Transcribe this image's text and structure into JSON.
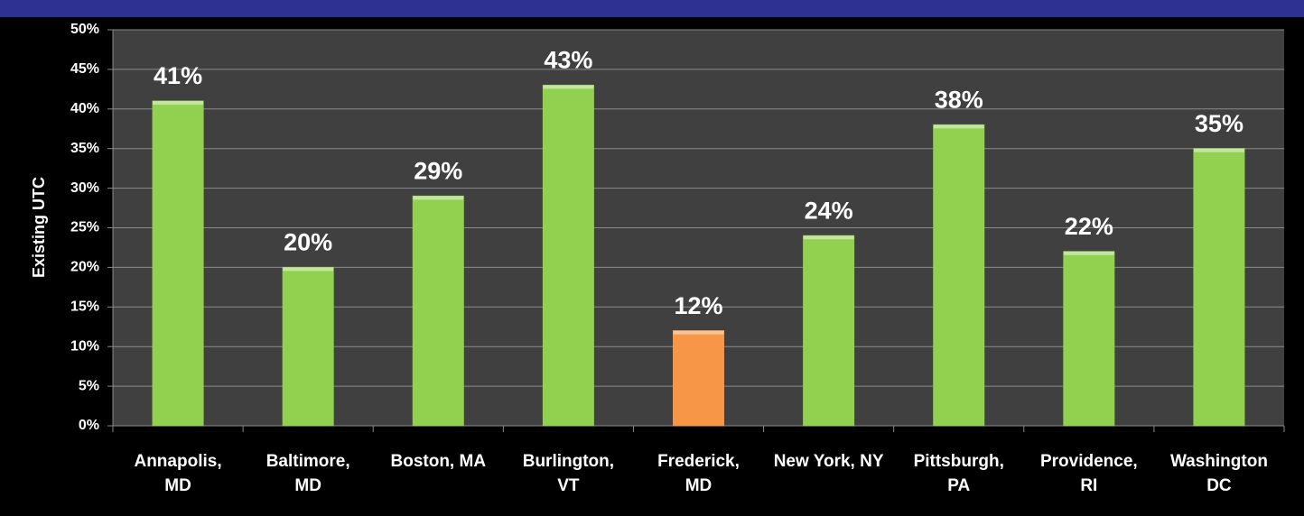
{
  "chart_data": {
    "type": "bar",
    "y_label": "Existing UTC",
    "categories": [
      [
        "Annapolis,",
        "MD"
      ],
      [
        "Baltimore,",
        "MD"
      ],
      [
        "Boston, MA"
      ],
      [
        "Burlington,",
        "VT"
      ],
      [
        "Frederick,",
        "MD"
      ],
      [
        "New York, NY"
      ],
      [
        "Pittsburgh,",
        "PA"
      ],
      [
        "Providence,",
        "RI"
      ],
      [
        "Washington",
        "DC"
      ]
    ],
    "values": [
      41,
      20,
      29,
      43,
      12,
      24,
      38,
      22,
      35
    ],
    "value_labels": [
      "41%",
      "20%",
      "29%",
      "43%",
      "12%",
      "24%",
      "38%",
      "22%",
      "35%"
    ],
    "colors": [
      "#92d050",
      "#92d050",
      "#92d050",
      "#92d050",
      "#f79646",
      "#92d050",
      "#92d050",
      "#92d050",
      "#92d050"
    ],
    "ylim": [
      0,
      50
    ],
    "yticks": [
      {
        "value": 0,
        "label": "0%"
      },
      {
        "value": 5,
        "label": "5%"
      },
      {
        "value": 10,
        "label": "10%"
      },
      {
        "value": 15,
        "label": "15%"
      },
      {
        "value": 20,
        "label": "20%"
      },
      {
        "value": 25,
        "label": "25%"
      },
      {
        "value": 30,
        "label": "30%"
      },
      {
        "value": 35,
        "label": "35%"
      },
      {
        "value": 40,
        "label": "40%"
      },
      {
        "value": 45,
        "label": "45%"
      },
      {
        "value": 50,
        "label": "50%"
      }
    ],
    "grid": true
  }
}
